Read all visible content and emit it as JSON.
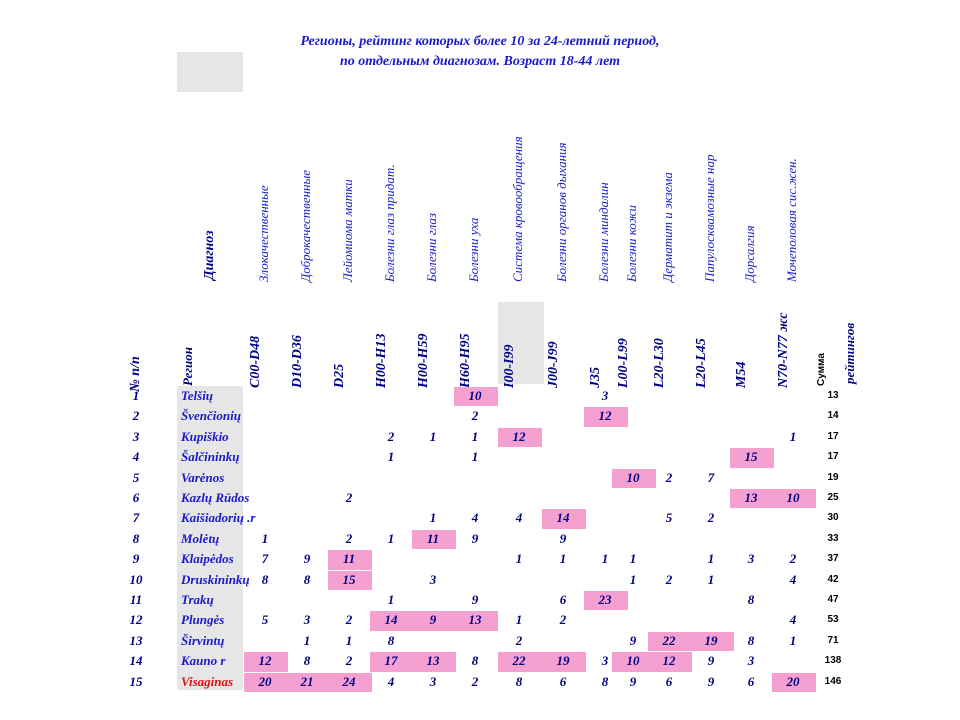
{
  "title": {
    "line1": "Регионы, рейтинг которых более 10 за 24-летний период,",
    "line2": "по отдельным диагнозам.  Возраст 18-44 лет"
  },
  "header": {
    "num_label": "№ п/п",
    "region_label": "Регион",
    "diagnosis_label": "Диагноз",
    "sum_label": "Сумма",
    "rating_label": "рейтингов"
  },
  "columns": [
    {
      "diagnosis": "Злокачественные",
      "code": "C00-D48"
    },
    {
      "diagnosis": "Доброкачественные",
      "code": "D10-D36"
    },
    {
      "diagnosis": "Лейомиома матки",
      "code": "D25"
    },
    {
      "diagnosis": "Болезни глаз придат.",
      "code": "H00-H13"
    },
    {
      "diagnosis": "Болезни глаз",
      "code": "H00-H59"
    },
    {
      "diagnosis": "Болезни уха",
      "code": "H60-H95"
    },
    {
      "diagnosis": "Система кровообращения",
      "code": "I00-I99"
    },
    {
      "diagnosis": "Болезни органов дыхания",
      "code": "J00-J99"
    },
    {
      "diagnosis": "Болезни миндалин",
      "code": "J35"
    },
    {
      "diagnosis": "Болезни кожи",
      "code": "L00-L99"
    },
    {
      "diagnosis": "Дерматит и экзема",
      "code": "L20-L30"
    },
    {
      "diagnosis": "Папулосквамозные нар",
      "code": "L20-L45"
    },
    {
      "diagnosis": "Дорсалгия",
      "code": "M54"
    },
    {
      "diagnosis": "Мочеполовая сис.жен.",
      "code": "N70-N77 жс"
    }
  ],
  "rows": [
    {
      "num": "1",
      "region": "Telšių",
      "sum": "13",
      "red": false,
      "values": [
        "",
        "",
        "",
        "",
        "",
        "10",
        "",
        "",
        "3",
        "",
        "",
        "",
        "",
        ""
      ],
      "hl": [
        false,
        false,
        false,
        false,
        false,
        true,
        false,
        false,
        false,
        false,
        false,
        false,
        false,
        false
      ]
    },
    {
      "num": "2",
      "region": "Švenčionių",
      "sum": "14",
      "red": false,
      "values": [
        "",
        "",
        "",
        "",
        "",
        "2",
        "",
        "",
        "12",
        "",
        "",
        "",
        "",
        ""
      ],
      "hl": [
        false,
        false,
        false,
        false,
        false,
        false,
        false,
        false,
        true,
        false,
        false,
        false,
        false,
        false
      ]
    },
    {
      "num": "3",
      "region": "Kupiškio",
      "sum": "17",
      "red": false,
      "values": [
        "",
        "",
        "",
        "2",
        "1",
        "1",
        "12",
        "",
        "",
        "",
        "",
        "",
        "",
        "1"
      ],
      "hl": [
        false,
        false,
        false,
        false,
        false,
        false,
        true,
        false,
        false,
        false,
        false,
        false,
        false,
        false
      ]
    },
    {
      "num": "4",
      "region": "Šalčininkų",
      "sum": "17",
      "red": false,
      "values": [
        "",
        "",
        "",
        "1",
        "",
        "1",
        "",
        "",
        "",
        "",
        "",
        "",
        "15",
        ""
      ],
      "hl": [
        false,
        false,
        false,
        false,
        false,
        false,
        false,
        false,
        false,
        false,
        false,
        false,
        true,
        false
      ]
    },
    {
      "num": "5",
      "region": "Varėnos",
      "sum": "19",
      "red": false,
      "values": [
        "",
        "",
        "",
        "",
        "",
        "",
        "",
        "",
        "",
        "10",
        "2",
        "7",
        "",
        ""
      ],
      "hl": [
        false,
        false,
        false,
        false,
        false,
        false,
        false,
        false,
        false,
        true,
        false,
        false,
        false,
        false
      ]
    },
    {
      "num": "6",
      "region": "Kazlų Rūdos",
      "sum": "25",
      "red": false,
      "values": [
        "",
        "",
        "2",
        "",
        "",
        "",
        "",
        "",
        "",
        "",
        "",
        "",
        "13",
        "10"
      ],
      "hl": [
        false,
        false,
        false,
        false,
        false,
        false,
        false,
        false,
        false,
        false,
        false,
        false,
        true,
        true
      ]
    },
    {
      "num": "7",
      "region": "Kaišiadorių .r",
      "sum": "30",
      "red": false,
      "values": [
        "",
        "",
        "",
        "",
        "1",
        "4",
        "4",
        "14",
        "",
        "",
        "5",
        "2",
        "",
        ""
      ],
      "hl": [
        false,
        false,
        false,
        false,
        false,
        false,
        false,
        true,
        false,
        false,
        false,
        false,
        false,
        false
      ]
    },
    {
      "num": "8",
      "region": "Molėtų",
      "sum": "33",
      "red": false,
      "values": [
        "1",
        "",
        "2",
        "1",
        "11",
        "9",
        "",
        "9",
        "",
        "",
        "",
        "",
        "",
        ""
      ],
      "hl": [
        false,
        false,
        false,
        false,
        true,
        false,
        false,
        false,
        false,
        false,
        false,
        false,
        false,
        false
      ]
    },
    {
      "num": "9",
      "region": "Klaipėdos",
      "sum": "37",
      "red": false,
      "values": [
        "7",
        "9",
        "11",
        "",
        "",
        "",
        "1",
        "1",
        "1",
        "1",
        "",
        "1",
        "3",
        "2"
      ],
      "hl": [
        false,
        false,
        true,
        false,
        false,
        false,
        false,
        false,
        false,
        false,
        false,
        false,
        false,
        false
      ]
    },
    {
      "num": "10",
      "region": "Druskininkų",
      "sum": "42",
      "red": false,
      "values": [
        "8",
        "8",
        "15",
        "",
        "3",
        "",
        "",
        "",
        "",
        "1",
        "2",
        "1",
        "",
        "4"
      ],
      "hl": [
        false,
        false,
        true,
        false,
        false,
        false,
        false,
        false,
        false,
        false,
        false,
        false,
        false,
        false
      ]
    },
    {
      "num": "11",
      "region": "Trakų",
      "sum": "47",
      "red": false,
      "values": [
        "",
        "",
        "",
        "1",
        "",
        "9",
        "",
        "6",
        "23",
        "",
        "",
        "",
        "8",
        ""
      ],
      "hl": [
        false,
        false,
        false,
        false,
        false,
        false,
        false,
        false,
        true,
        false,
        false,
        false,
        false,
        false
      ]
    },
    {
      "num": "12",
      "region": "Plungės",
      "sum": "53",
      "red": false,
      "values": [
        "5",
        "3",
        "2",
        "14",
        "9",
        "13",
        "1",
        "2",
        "",
        "",
        "",
        "",
        "",
        "4"
      ],
      "hl": [
        false,
        false,
        false,
        true,
        true,
        true,
        false,
        false,
        false,
        false,
        false,
        false,
        false,
        false
      ]
    },
    {
      "num": "13",
      "region": "Širvintų",
      "sum": "71",
      "red": false,
      "values": [
        "",
        "1",
        "1",
        "8",
        "",
        "",
        "2",
        "",
        "",
        "9",
        "22",
        "19",
        "8",
        "1"
      ],
      "hl": [
        false,
        false,
        false,
        false,
        false,
        false,
        false,
        false,
        false,
        false,
        true,
        true,
        false,
        false
      ]
    },
    {
      "num": "14",
      "region": "Kauno r",
      "sum": "138",
      "red": false,
      "values": [
        "12",
        "8",
        "2",
        "17",
        "13",
        "8",
        "22",
        "19",
        "3",
        "10",
        "12",
        "9",
        "3",
        ""
      ],
      "hl": [
        true,
        false,
        false,
        true,
        true,
        false,
        true,
        true,
        false,
        true,
        true,
        false,
        false,
        false
      ]
    },
    {
      "num": "15",
      "region": "Visaginas",
      "sum": "146",
      "red": true,
      "values": [
        "20",
        "21",
        "24",
        "4",
        "3",
        "2",
        "8",
        "6",
        "8",
        "9",
        "6",
        "9",
        "6",
        "20"
      ],
      "hl": [
        true,
        true,
        true,
        false,
        false,
        false,
        false,
        false,
        false,
        false,
        false,
        false,
        false,
        true
      ]
    }
  ],
  "colors": {
    "header_blue": "#1a1acc",
    "value_navy": "#000080",
    "highlight_pink": "#f4a0d0",
    "region_gray": "#e6e6e6",
    "visaginas_red": "#e01010"
  }
}
